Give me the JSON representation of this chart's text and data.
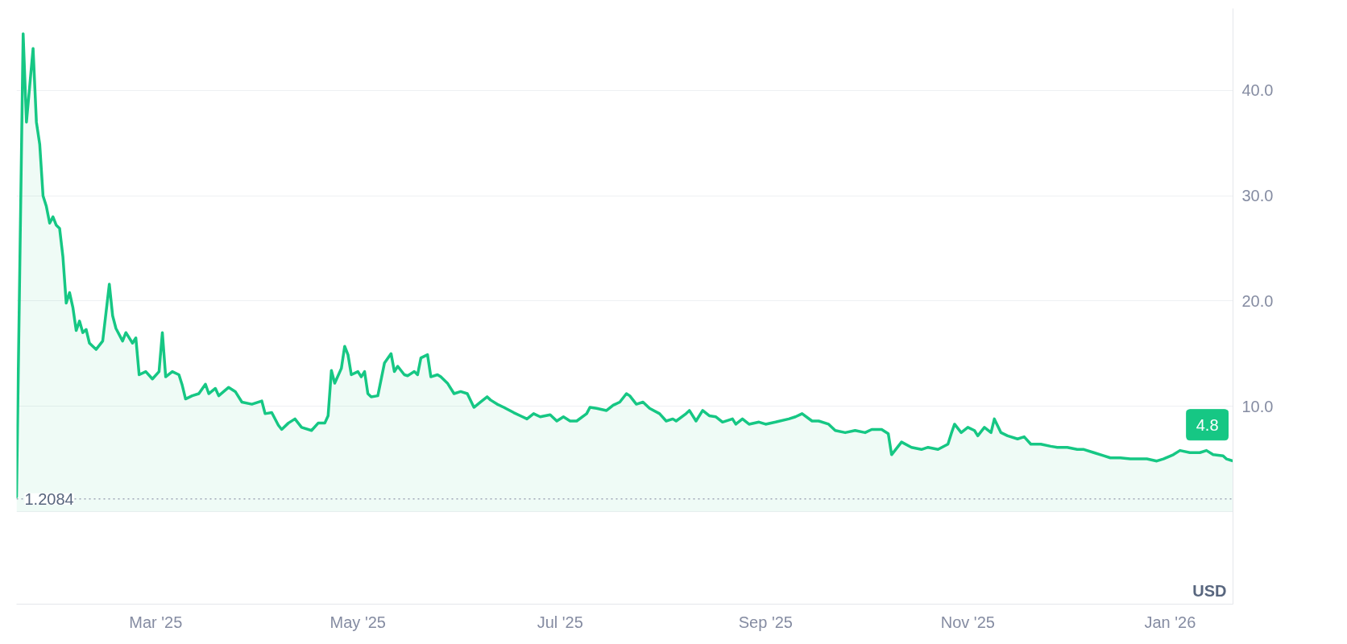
{
  "chart_data": {
    "type": "area",
    "x": [
      "2025-01-18",
      "2025-01-20",
      "2025-01-21",
      "2025-01-23",
      "2025-01-24",
      "2025-01-25",
      "2025-01-26",
      "2025-01-27",
      "2025-01-28",
      "2025-01-29",
      "2025-01-30",
      "2025-01-31",
      "2025-02-01",
      "2025-02-02",
      "2025-02-03",
      "2025-02-04",
      "2025-02-05",
      "2025-02-06",
      "2025-02-07",
      "2025-02-08",
      "2025-02-09",
      "2025-02-11",
      "2025-02-13",
      "2025-02-15",
      "2025-02-16",
      "2025-02-17",
      "2025-02-19",
      "2025-02-20",
      "2025-02-22",
      "2025-02-23",
      "2025-02-24",
      "2025-02-26",
      "2025-02-28",
      "2025-03-02",
      "2025-03-03",
      "2025-03-04",
      "2025-03-06",
      "2025-03-08",
      "2025-03-09",
      "2025-03-10",
      "2025-03-12",
      "2025-03-14",
      "2025-03-16",
      "2025-03-17",
      "2025-03-19",
      "2025-03-20",
      "2025-03-23",
      "2025-03-25",
      "2025-03-27",
      "2025-03-30",
      "2025-04-02",
      "2025-04-03",
      "2025-04-05",
      "2025-04-07",
      "2025-04-08",
      "2025-04-10",
      "2025-04-12",
      "2025-04-14",
      "2025-04-17",
      "2025-04-19",
      "2025-04-21",
      "2025-04-22",
      "2025-04-23",
      "2025-04-24",
      "2025-04-26",
      "2025-04-27",
      "2025-04-28",
      "2025-04-29",
      "2025-05-01",
      "2025-05-02",
      "2025-05-03",
      "2025-05-04",
      "2025-05-05",
      "2025-05-07",
      "2025-05-09",
      "2025-05-11",
      "2025-05-12",
      "2025-05-13",
      "2025-05-15",
      "2025-05-16",
      "2025-05-18",
      "2025-05-19",
      "2025-05-20",
      "2025-05-22",
      "2025-05-23",
      "2025-05-25",
      "2025-05-26",
      "2025-05-28",
      "2025-05-30",
      "2025-06-01",
      "2025-06-03",
      "2025-06-05",
      "2025-06-07",
      "2025-06-09",
      "2025-06-10",
      "2025-06-12",
      "2025-06-14",
      "2025-06-17",
      "2025-06-19",
      "2025-06-21",
      "2025-06-23",
      "2025-06-25",
      "2025-06-28",
      "2025-06-30",
      "2025-07-02",
      "2025-07-04",
      "2025-07-06",
      "2025-07-09",
      "2025-07-10",
      "2025-07-12",
      "2025-07-15",
      "2025-07-17",
      "2025-07-19",
      "2025-07-21",
      "2025-07-22",
      "2025-07-24",
      "2025-07-26",
      "2025-07-28",
      "2025-07-31",
      "2025-08-02",
      "2025-08-04",
      "2025-08-05",
      "2025-08-08",
      "2025-08-09",
      "2025-08-11",
      "2025-08-13",
      "2025-08-15",
      "2025-08-17",
      "2025-08-19",
      "2025-08-22",
      "2025-08-23",
      "2025-08-25",
      "2025-08-27",
      "2025-08-30",
      "2025-09-01",
      "2025-09-04",
      "2025-09-08",
      "2025-09-10",
      "2025-09-12",
      "2025-09-15",
      "2025-09-17",
      "2025-09-20",
      "2025-09-22",
      "2025-09-25",
      "2025-09-28",
      "2025-10-01",
      "2025-10-03",
      "2025-10-06",
      "2025-10-08",
      "2025-10-09",
      "2025-10-12",
      "2025-10-15",
      "2025-10-18",
      "2025-10-20",
      "2025-10-23",
      "2025-10-26",
      "2025-10-27",
      "2025-10-28",
      "2025-10-30",
      "2025-11-01",
      "2025-11-03",
      "2025-11-04",
      "2025-11-06",
      "2025-11-08",
      "2025-11-09",
      "2025-11-11",
      "2025-11-13",
      "2025-11-16",
      "2025-11-18",
      "2025-11-20",
      "2025-11-23",
      "2025-11-26",
      "2025-11-28",
      "2025-12-01",
      "2025-12-04",
      "2025-12-06",
      "2025-12-09",
      "2025-12-12",
      "2025-12-14",
      "2025-12-17",
      "2025-12-20",
      "2025-12-22",
      "2025-12-25",
      "2025-12-28",
      "2025-12-30",
      "2026-01-02",
      "2026-01-04",
      "2026-01-07",
      "2026-01-10",
      "2026-01-12",
      "2026-01-14",
      "2026-01-17",
      "2026-01-18",
      "2026-01-20"
    ],
    "series": [
      {
        "color": "#16c784",
        "values": [
          1.4,
          45.4,
          37,
          44,
          37,
          34.9,
          30,
          29,
          27.4,
          28,
          27.2,
          26.9,
          24.2,
          19.8,
          20.8,
          19.4,
          17.2,
          18.1,
          17,
          17.3,
          16,
          15.4,
          16.2,
          21.6,
          18.6,
          17.4,
          16.2,
          17,
          16,
          16.5,
          13,
          13.3,
          12.6,
          13.3,
          17,
          12.8,
          13.3,
          13,
          12,
          10.7,
          11,
          11.2,
          12.1,
          11.2,
          11.7,
          11,
          11.8,
          11.4,
          10.4,
          10.2,
          10.5,
          9.3,
          9.4,
          8.2,
          7.8,
          8.4,
          8.8,
          8,
          7.7,
          8.4,
          8.4,
          9.1,
          13.4,
          12.2,
          13.6,
          15.7,
          14.9,
          13,
          13.3,
          12.8,
          13.3,
          11.2,
          10.9,
          11,
          14.1,
          15,
          13.3,
          13.8,
          13,
          12.9,
          13.3,
          13,
          14.6,
          14.9,
          12.8,
          13,
          12.8,
          12.2,
          11.2,
          11.4,
          11.2,
          9.9,
          10.4,
          10.9,
          10.6,
          10.2,
          9.9,
          9.4,
          9.1,
          8.8,
          9.3,
          9,
          9.2,
          8.6,
          9,
          8.6,
          8.6,
          9.3,
          9.9,
          9.8,
          9.6,
          10.1,
          10.4,
          11.2,
          11,
          10.2,
          10.4,
          9.8,
          9.3,
          8.6,
          8.8,
          8.6,
          9.3,
          9.6,
          8.6,
          9.6,
          9.1,
          9,
          8.5,
          8.8,
          8.3,
          8.8,
          8.3,
          8.5,
          8.3,
          8.5,
          8.8,
          9,
          9.3,
          8.6,
          8.6,
          8.3,
          7.7,
          7.5,
          7.7,
          7.5,
          7.8,
          7.8,
          7.4,
          5.4,
          6.6,
          6.1,
          5.9,
          6.1,
          5.9,
          6.4,
          7.4,
          8.3,
          7.5,
          8,
          7.7,
          7.2,
          8,
          7.5,
          8.8,
          7.5,
          7.2,
          6.9,
          7.1,
          6.4,
          6.4,
          6.2,
          6.1,
          6.1,
          5.9,
          5.9,
          5.6,
          5.3,
          5.1,
          5.1,
          5,
          5,
          5,
          4.8,
          5,
          5.4,
          5.8,
          5.6,
          5.6,
          5.8,
          5.4,
          5.3,
          5,
          4.8
        ]
      }
    ],
    "xlim": [
      "2025-01-18",
      "2026-01-20"
    ],
    "xticks": [
      {
        "value": "2025-03-01",
        "label": "Mar '25"
      },
      {
        "value": "2025-05-01",
        "label": "May '25"
      },
      {
        "value": "2025-07-01",
        "label": "Jul '25"
      },
      {
        "value": "2025-09-01",
        "label": "Sep '25"
      },
      {
        "value": "2025-11-01",
        "label": "Nov '25"
      },
      {
        "value": "2026-01-01",
        "label": "Jan '26"
      }
    ],
    "ylim": [
      -8.8,
      47.8
    ],
    "yticks": [
      {
        "value": 0,
        "label": null
      },
      {
        "value": 10,
        "label": "10.0"
      },
      {
        "value": 20,
        "label": "20.0"
      },
      {
        "value": 30,
        "label": "30.0"
      },
      {
        "value": 40,
        "label": "40.0"
      }
    ],
    "grid": "y",
    "ref_lines": [
      {
        "axis": "y",
        "value": 1.2084,
        "label": "1.2084",
        "line_style": "dotted",
        "color": "#a0a7b8"
      }
    ],
    "annotations": [
      {
        "text": "4.8",
        "x": "2026-01-20",
        "y": 4.8
      },
      "USD"
    ]
  }
}
